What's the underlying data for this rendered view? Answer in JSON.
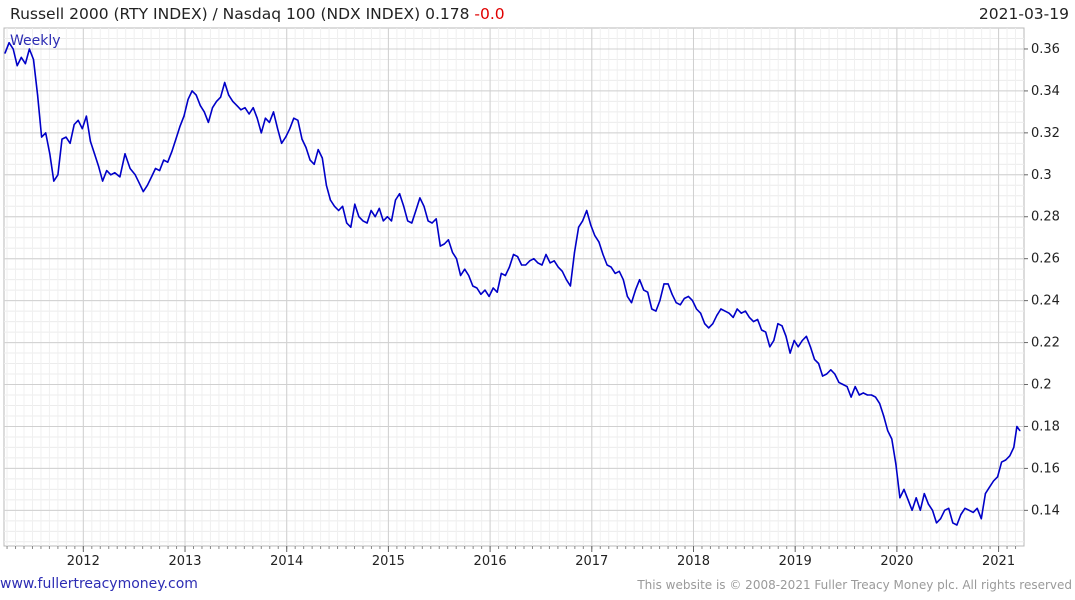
{
  "header": {
    "title": "Russell 2000 (RTY INDEX) / Nasdaq 100 (NDX INDEX) 0.178",
    "change": "-0.0",
    "date": "2021-03-19"
  },
  "footer": {
    "link": "www.fullertreacymoney.com",
    "copyright": "This website is © 2008-2021 Fuller Treacy Money plc. All rights reserved"
  },
  "colors": {
    "line": "#0000c8",
    "grid": "#d0d0d0",
    "down": "#e00000",
    "link": "#2d2db4"
  },
  "chart_data": {
    "type": "line",
    "frequency_label": "Weekly",
    "xlim": [
      2011.22,
      2021.25
    ],
    "ylim": [
      0.123,
      0.37
    ],
    "y_ticks": [
      0.14,
      0.16,
      0.18,
      0.2,
      0.22,
      0.24,
      0.26,
      0.28,
      0.3,
      0.32,
      0.34,
      0.36
    ],
    "y_tick_labels": [
      "0.14",
      "0.16",
      "0.18",
      "0.2",
      "0.22",
      "0.24",
      "0.26",
      "0.28",
      "0.3",
      "0.32",
      "0.34",
      "0.36"
    ],
    "x_ticks": [
      2012,
      2013,
      2014,
      2015,
      2016,
      2017,
      2018,
      2019,
      2020,
      2021
    ],
    "x_tick_labels": [
      "2012",
      "2013",
      "2014",
      "2015",
      "2016",
      "2017",
      "2018",
      "2019",
      "2020",
      "2021"
    ],
    "grid": true,
    "series": [
      {
        "x": [
          2011.23,
          2011.27,
          2011.31,
          2011.35,
          2011.39,
          2011.43,
          2011.47,
          2011.51,
          2011.55,
          2011.59,
          2011.63,
          2011.67,
          2011.71,
          2011.75,
          2011.79,
          2011.83,
          2011.87,
          2011.91,
          2011.95,
          2011.99,
          2012.03,
          2012.07,
          2012.11,
          2012.15,
          2012.19,
          2012.23,
          2012.27,
          2012.31,
          2012.36,
          2012.41,
          2012.46,
          2012.51,
          2012.55,
          2012.59,
          2012.63,
          2012.67,
          2012.71,
          2012.75,
          2012.79,
          2012.83,
          2012.87,
          2012.91,
          2012.95,
          2012.99,
          2013.03,
          2013.07,
          2013.11,
          2013.15,
          2013.19,
          2013.23,
          2013.27,
          2013.31,
          2013.35,
          2013.39,
          2013.43,
          2013.47,
          2013.51,
          2013.55,
          2013.59,
          2013.63,
          2013.67,
          2013.71,
          2013.75,
          2013.79,
          2013.83,
          2013.87,
          2013.91,
          2013.95,
          2013.99,
          2014.03,
          2014.07,
          2014.11,
          2014.15,
          2014.19,
          2014.23,
          2014.27,
          2014.31,
          2014.35,
          2014.39,
          2014.43,
          2014.47,
          2014.51,
          2014.55,
          2014.59,
          2014.63,
          2014.67,
          2014.71,
          2014.75,
          2014.79,
          2014.83,
          2014.87,
          2014.91,
          2014.95,
          2014.99,
          2015.03,
          2015.07,
          2015.11,
          2015.15,
          2015.19,
          2015.23,
          2015.27,
          2015.31,
          2015.35,
          2015.39,
          2015.43,
          2015.47,
          2015.51,
          2015.55,
          2015.59,
          2015.63,
          2015.67,
          2015.71,
          2015.75,
          2015.79,
          2015.83,
          2015.87,
          2015.91,
          2015.95,
          2015.99,
          2016.03,
          2016.07,
          2016.11,
          2016.15,
          2016.19,
          2016.23,
          2016.27,
          2016.31,
          2016.35,
          2016.39,
          2016.43,
          2016.47,
          2016.51,
          2016.55,
          2016.59,
          2016.63,
          2016.67,
          2016.71,
          2016.75,
          2016.79,
          2016.83,
          2016.87,
          2016.91,
          2016.95,
          2016.99,
          2017.03,
          2017.07,
          2017.11,
          2017.15,
          2017.19,
          2017.23,
          2017.27,
          2017.31,
          2017.35,
          2017.39,
          2017.43,
          2017.47,
          2017.51,
          2017.55,
          2017.59,
          2017.63,
          2017.67,
          2017.71,
          2017.75,
          2017.79,
          2017.83,
          2017.87,
          2017.91,
          2017.95,
          2017.99,
          2018.03,
          2018.07,
          2018.11,
          2018.15,
          2018.19,
          2018.23,
          2018.27,
          2018.31,
          2018.35,
          2018.39,
          2018.43,
          2018.47,
          2018.51,
          2018.55,
          2018.59,
          2018.63,
          2018.67,
          2018.71,
          2018.75,
          2018.79,
          2018.83,
          2018.87,
          2018.91,
          2018.95,
          2018.99,
          2019.03,
          2019.07,
          2019.11,
          2019.15,
          2019.19,
          2019.23,
          2019.27,
          2019.31,
          2019.35,
          2019.39,
          2019.43,
          2019.47,
          2019.51,
          2019.55,
          2019.59,
          2019.63,
          2019.67,
          2019.71,
          2019.75,
          2019.79,
          2019.83,
          2019.87,
          2019.91,
          2019.95,
          2019.99,
          2020.03,
          2020.07,
          2020.11,
          2020.15,
          2020.19,
          2020.23,
          2020.27,
          2020.31,
          2020.35,
          2020.39,
          2020.43,
          2020.47,
          2020.51,
          2020.55,
          2020.59,
          2020.63,
          2020.67,
          2020.71,
          2020.75,
          2020.79,
          2020.83,
          2020.87,
          2020.91,
          2020.95,
          2020.99,
          2021.03,
          2021.07,
          2021.11,
          2021.15,
          2021.18,
          2021.21
        ],
        "y": [
          0.358,
          0.363,
          0.36,
          0.352,
          0.356,
          0.353,
          0.36,
          0.355,
          0.338,
          0.318,
          0.32,
          0.31,
          0.297,
          0.3,
          0.317,
          0.318,
          0.315,
          0.324,
          0.326,
          0.322,
          0.328,
          0.316,
          0.31,
          0.304,
          0.297,
          0.302,
          0.3,
          0.301,
          0.299,
          0.31,
          0.303,
          0.3,
          0.296,
          0.292,
          0.295,
          0.299,
          0.303,
          0.302,
          0.307,
          0.306,
          0.311,
          0.317,
          0.323,
          0.328,
          0.336,
          0.34,
          0.338,
          0.333,
          0.33,
          0.325,
          0.332,
          0.335,
          0.337,
          0.344,
          0.338,
          0.335,
          0.333,
          0.331,
          0.332,
          0.329,
          0.332,
          0.327,
          0.32,
          0.327,
          0.325,
          0.33,
          0.322,
          0.315,
          0.318,
          0.322,
          0.327,
          0.326,
          0.317,
          0.313,
          0.307,
          0.305,
          0.312,
          0.308,
          0.295,
          0.288,
          0.285,
          0.283,
          0.285,
          0.277,
          0.275,
          0.286,
          0.28,
          0.278,
          0.277,
          0.283,
          0.28,
          0.284,
          0.278,
          0.28,
          0.278,
          0.288,
          0.291,
          0.285,
          0.278,
          0.277,
          0.283,
          0.289,
          0.285,
          0.278,
          0.277,
          0.279,
          0.266,
          0.267,
          0.269,
          0.263,
          0.26,
          0.252,
          0.255,
          0.252,
          0.247,
          0.246,
          0.243,
          0.245,
          0.242,
          0.246,
          0.244,
          0.253,
          0.252,
          0.256,
          0.262,
          0.261,
          0.257,
          0.257,
          0.259,
          0.26,
          0.258,
          0.257,
          0.262,
          0.258,
          0.259,
          0.256,
          0.254,
          0.25,
          0.247,
          0.263,
          0.275,
          0.278,
          0.283,
          0.276,
          0.271,
          0.268,
          0.262,
          0.257,
          0.256,
          0.253,
          0.254,
          0.25,
          0.242,
          0.239,
          0.245,
          0.25,
          0.245,
          0.244,
          0.236,
          0.235,
          0.24,
          0.248,
          0.248,
          0.243,
          0.239,
          0.238,
          0.241,
          0.242,
          0.24,
          0.236,
          0.234,
          0.229,
          0.227,
          0.229,
          0.233,
          0.236,
          0.235,
          0.234,
          0.232,
          0.236,
          0.234,
          0.235,
          0.232,
          0.23,
          0.231,
          0.226,
          0.225,
          0.218,
          0.221,
          0.229,
          0.228,
          0.223,
          0.215,
          0.221,
          0.218,
          0.221,
          0.223,
          0.218,
          0.212,
          0.21,
          0.204,
          0.205,
          0.207,
          0.205,
          0.201,
          0.2,
          0.199,
          0.194,
          0.199,
          0.195,
          0.196,
          0.195,
          0.195,
          0.194,
          0.191,
          0.185,
          0.178,
          0.174,
          0.162,
          0.146,
          0.15,
          0.145,
          0.14,
          0.146,
          0.14,
          0.148,
          0.143,
          0.14,
          0.134,
          0.136,
          0.14,
          0.141,
          0.134,
          0.133,
          0.138,
          0.141,
          0.14,
          0.139,
          0.141,
          0.136,
          0.148,
          0.151,
          0.154,
          0.156,
          0.163,
          0.164,
          0.166,
          0.17,
          0.18,
          0.178
        ]
      }
    ]
  }
}
